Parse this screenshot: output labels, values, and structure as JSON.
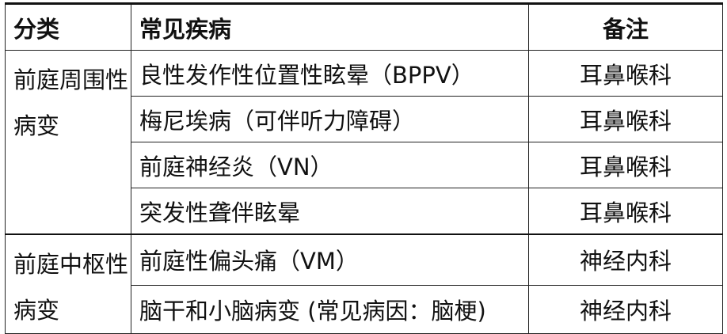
{
  "table": {
    "headers": {
      "category": "分类",
      "disease": "常见疾病",
      "note": "备注"
    },
    "groups": [
      {
        "category": "前庭周围性病变",
        "rows": [
          {
            "disease": "良性发作性位置性眩晕（BPPV）",
            "note": "耳鼻喉科"
          },
          {
            "disease": "梅尼埃病（可伴听力障碍）",
            "note": "耳鼻喉科"
          },
          {
            "disease": "前庭神经炎（VN）",
            "note": "耳鼻喉科"
          },
          {
            "disease": "突发性聋伴眩晕",
            "note": "耳鼻喉科"
          }
        ]
      },
      {
        "category": "前庭中枢性病变",
        "rows": [
          {
            "disease": "前庭性偏头痛（VM）",
            "note": "神经内科"
          },
          {
            "disease": "脑干和小脑病变 (常见病因：脑梗)",
            "note": "神经内科"
          }
        ]
      }
    ]
  }
}
